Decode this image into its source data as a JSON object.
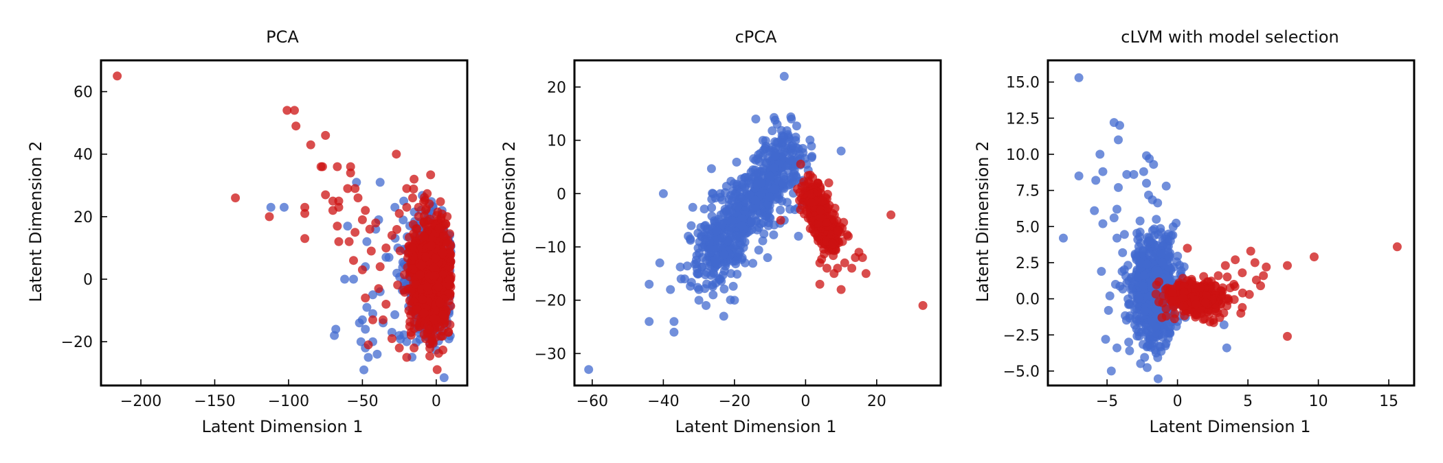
{
  "colors": {
    "background": "#4169cf",
    "target": "#cc1111"
  },
  "chart_data": [
    {
      "type": "scatter",
      "title": "PCA",
      "xlabel": "Latent Dimension 1",
      "ylabel": "Latent Dimension 2",
      "xlim": [
        -227,
        21
      ],
      "ylim": [
        -34,
        70
      ],
      "xticks": [
        -200,
        -150,
        -100,
        -50,
        0
      ],
      "yticks": [
        -20,
        0,
        20,
        40,
        60
      ],
      "grid": false,
      "legend": "none",
      "series": [
        {
          "color": "#4169cf",
          "outliers": [
            [
              -112,
              23
            ],
            [
              -103,
              23
            ],
            [
              -54,
              31
            ],
            [
              -38,
              31
            ],
            [
              -60,
              17
            ],
            [
              -62,
              0
            ],
            [
              -56,
              0
            ],
            [
              -48,
              4
            ],
            [
              -43,
              -5
            ],
            [
              -50,
              -13
            ],
            [
              -47,
              -9
            ],
            [
              -43,
              -11
            ],
            [
              -68,
              -16
            ],
            [
              -69,
              -18
            ],
            [
              -52,
              -14
            ],
            [
              -48,
              -16
            ],
            [
              -43,
              -20
            ],
            [
              -51,
              -20
            ],
            [
              -48,
              -22
            ],
            [
              -46,
              -25
            ],
            [
              -49,
              -29
            ],
            [
              -40,
              -24
            ],
            [
              -36,
              -14
            ],
            [
              -39,
              19
            ],
            [
              -41,
              16
            ],
            [
              -47,
              12
            ],
            [
              -34,
              7
            ],
            [
              -38,
              -4
            ],
            [
              -30,
              -17
            ],
            [
              -25,
              -18
            ],
            [
              -20,
              -20
            ],
            [
              -28,
              23
            ],
            [
              -22,
              25
            ],
            [
              -26,
              10
            ]
          ],
          "cluster": {
            "cx": -5,
            "cy": 0,
            "sx": 8,
            "sy": 9,
            "n": 500,
            "xmax": 10
          }
        },
        {
          "color": "#cc1111",
          "outliers": [
            [
              -216,
              65
            ],
            [
              -101,
              54
            ],
            [
              -96,
              54
            ],
            [
              -95,
              49
            ],
            [
              -85,
              43
            ],
            [
              -75,
              46
            ],
            [
              -78,
              36
            ],
            [
              -77,
              36
            ],
            [
              -67,
              36
            ],
            [
              -58,
              36
            ],
            [
              -58,
              34
            ],
            [
              -27,
              40
            ],
            [
              -20,
              29
            ],
            [
              -15,
              32
            ],
            [
              -136,
              26
            ],
            [
              -113,
              20
            ],
            [
              -89,
              23
            ],
            [
              -89,
              21
            ],
            [
              -89,
              13
            ],
            [
              -75,
              27
            ],
            [
              -70,
              25
            ],
            [
              -66,
              25
            ],
            [
              -66,
              23
            ],
            [
              -60,
              29
            ],
            [
              -55,
              29
            ],
            [
              -53,
              26
            ],
            [
              -70,
              22
            ],
            [
              -67,
              17
            ],
            [
              -66,
              12
            ],
            [
              -59,
              12
            ],
            [
              -55,
              15
            ],
            [
              -50,
              19
            ],
            [
              -48,
              22
            ],
            [
              -45,
              16
            ],
            [
              -41,
              18
            ],
            [
              -44,
              9
            ],
            [
              -56,
              6
            ],
            [
              -50,
              3
            ],
            [
              -38,
              4
            ],
            [
              -34,
              10
            ],
            [
              -30,
              14
            ],
            [
              -25,
              21
            ],
            [
              -20,
              23
            ],
            [
              -16,
              26
            ],
            [
              -12,
              23
            ],
            [
              -48,
              -6
            ],
            [
              -43,
              -13
            ],
            [
              -39,
              -3
            ],
            [
              -46,
              -21
            ],
            [
              -36,
              -13
            ],
            [
              -30,
              -19
            ],
            [
              -25,
              -22
            ],
            [
              -20,
              -25
            ],
            [
              -15,
              -22
            ],
            [
              -17,
              -17
            ],
            [
              -34,
              -8
            ]
          ],
          "cluster": {
            "cx": -4,
            "cy": 1,
            "sx": 7,
            "sy": 9,
            "n": 950,
            "xmax": 10
          }
        }
      ]
    },
    {
      "type": "scatter",
      "title": "cPCA",
      "xlabel": "Latent Dimension 1",
      "ylabel": "Latent Dimension 2",
      "xlim": [
        -65,
        38
      ],
      "ylim": [
        -36,
        25
      ],
      "xticks": [
        -60,
        -40,
        -20,
        0,
        20
      ],
      "yticks": [
        -30,
        -20,
        -10,
        0,
        10,
        20
      ],
      "grid": false,
      "legend": "none",
      "series": [
        {
          "color": "#4169cf",
          "outliers": [
            [
              -6,
              22
            ],
            [
              -61,
              -33
            ],
            [
              -40,
              0
            ],
            [
              -44,
              -17
            ],
            [
              -44,
              -24
            ],
            [
              -41,
              -13
            ],
            [
              -38,
              -18
            ],
            [
              -37,
              -24
            ],
            [
              -37,
              -26
            ],
            [
              -34,
              -16
            ],
            [
              -35,
              -16
            ],
            [
              -33,
              -8
            ],
            [
              -30,
              -15
            ],
            [
              -30,
              -18
            ],
            [
              -30,
              -20
            ],
            [
              -28,
              -21
            ],
            [
              -26,
              -19
            ],
            [
              -26,
              0
            ],
            [
              -24,
              0
            ],
            [
              -23,
              -23
            ],
            [
              -21,
              -15
            ],
            [
              -20,
              -20
            ],
            [
              -17,
              -13
            ],
            [
              -14,
              14
            ],
            [
              -12,
              10
            ],
            [
              -8,
              13
            ],
            [
              -4,
              14
            ],
            [
              -16,
              2
            ],
            [
              -13,
              6
            ],
            [
              -6,
              -5
            ],
            [
              -3,
              -3
            ],
            [
              -2,
              -8
            ],
            [
              10,
              8
            ],
            [
              -27,
              -9
            ],
            [
              -29,
              -12
            ],
            [
              -24,
              -16
            ],
            [
              -20,
              -10
            ],
            [
              -22,
              -5
            ],
            [
              -18,
              -6
            ],
            [
              -25,
              -7
            ]
          ],
          "cluster": {
            "line": true,
            "x0": -28,
            "y0": -13,
            "x1": -4,
            "y1": 8,
            "sx": 3.2,
            "sy": 3.5,
            "n": 650
          }
        },
        {
          "color": "#cc1111",
          "outliers": [
            [
              33,
              -21
            ],
            [
              24,
              -4
            ],
            [
              17,
              -15
            ],
            [
              14,
              -12
            ],
            [
              10,
              -18
            ],
            [
              8,
              -15
            ],
            [
              4,
              -17
            ],
            [
              11,
              -13
            ],
            [
              12,
              -8
            ],
            [
              9,
              -7
            ],
            [
              -7,
              -5
            ],
            [
              1,
              2
            ],
            [
              2,
              3
            ],
            [
              15,
              -11
            ],
            [
              13,
              -14
            ],
            [
              6,
              -14
            ],
            [
              4,
              -13
            ],
            [
              9,
              -14
            ],
            [
              16,
              -12
            ]
          ],
          "cluster": {
            "line": true,
            "x0": 1,
            "y0": 0,
            "x1": 8,
            "y1": -9,
            "sx": 1.6,
            "sy": 1.9,
            "n": 320
          }
        }
      ]
    },
    {
      "type": "scatter",
      "title": "cLVM with model selection",
      "xlabel": "Latent Dimension 1",
      "ylabel": "Latent Dimension 2",
      "xlim": [
        -9.2,
        16.8
      ],
      "ylim": [
        -6,
        16.5
      ],
      "xticks": [
        -5,
        0,
        5,
        10,
        15
      ],
      "yticks": [
        -5.0,
        -2.5,
        0.0,
        2.5,
        5.0,
        7.5,
        10.0,
        12.5,
        15.0
      ],
      "grid": false,
      "legend": "none",
      "series": [
        {
          "color": "#4169cf",
          "outliers": [
            [
              -7,
              15.3
            ],
            [
              -4.5,
              12.2
            ],
            [
              -4.1,
              12
            ],
            [
              -4.2,
              11
            ],
            [
              -2.2,
              9.9
            ],
            [
              -2,
              9.7
            ],
            [
              -1.7,
              9.3
            ],
            [
              -2.4,
              8.8
            ],
            [
              -3.1,
              8.6
            ],
            [
              -3.6,
              8.6
            ],
            [
              -7,
              8.5
            ],
            [
              -5.5,
              10
            ],
            [
              -5.3,
              8.8
            ],
            [
              -5.8,
              8.2
            ],
            [
              -4.2,
              7.7
            ],
            [
              -2.2,
              8
            ],
            [
              -0.8,
              7.8
            ],
            [
              -4.3,
              6.2
            ],
            [
              -4.5,
              5.6
            ],
            [
              -5.9,
              6.1
            ],
            [
              -5.3,
              5.2
            ],
            [
              -8.1,
              4.2
            ],
            [
              -4.3,
              4.2
            ],
            [
              -5.4,
              1.9
            ],
            [
              -4.8,
              0.2
            ],
            [
              -4.9,
              -0.8
            ],
            [
              -5.1,
              -2.8
            ],
            [
              -4.7,
              -5
            ],
            [
              -4.3,
              -3.4
            ],
            [
              -3.4,
              -3.6
            ],
            [
              3.3,
              -1.8
            ],
            [
              3.5,
              -3.4
            ],
            [
              -1.5,
              5.5
            ],
            [
              -3,
              3
            ],
            [
              -0.5,
              4
            ],
            [
              -4.4,
              1.0
            ]
          ],
          "cluster": {
            "cx": -1.6,
            "cy": 0.6,
            "sx": 0.85,
            "sy": 1.9,
            "n": 650
          }
        },
        {
          "color": "#cc1111",
          "outliers": [
            [
              15.6,
              3.6
            ],
            [
              9.7,
              2.9
            ],
            [
              7.8,
              2.3
            ],
            [
              7.8,
              -2.6
            ],
            [
              5.2,
              3.3
            ],
            [
              5.5,
              2.5
            ],
            [
              6.3,
              2.2
            ],
            [
              6.1,
              1.6
            ],
            [
              5.6,
              1.3
            ],
            [
              5.9,
              0.9
            ],
            [
              4.6,
              1.8
            ],
            [
              4.1,
              2.7
            ],
            [
              4.6,
              -0.6
            ],
            [
              4.5,
              -1.0
            ],
            [
              3.4,
              2.3
            ],
            [
              3.5,
              0.0
            ],
            [
              2.9,
              1.6
            ],
            [
              3,
              -1.3
            ],
            [
              2.3,
              -1.6
            ],
            [
              0.7,
              3.5
            ],
            [
              -0.8,
              -1.2
            ],
            [
              -1.1,
              -1.3
            ],
            [
              5.1,
              0.3
            ],
            [
              4.0,
              1.0
            ]
          ],
          "cluster": {
            "cx": 1.3,
            "cy": 0.0,
            "sx": 1.0,
            "sy": 0.55,
            "n": 380
          }
        }
      ]
    }
  ]
}
